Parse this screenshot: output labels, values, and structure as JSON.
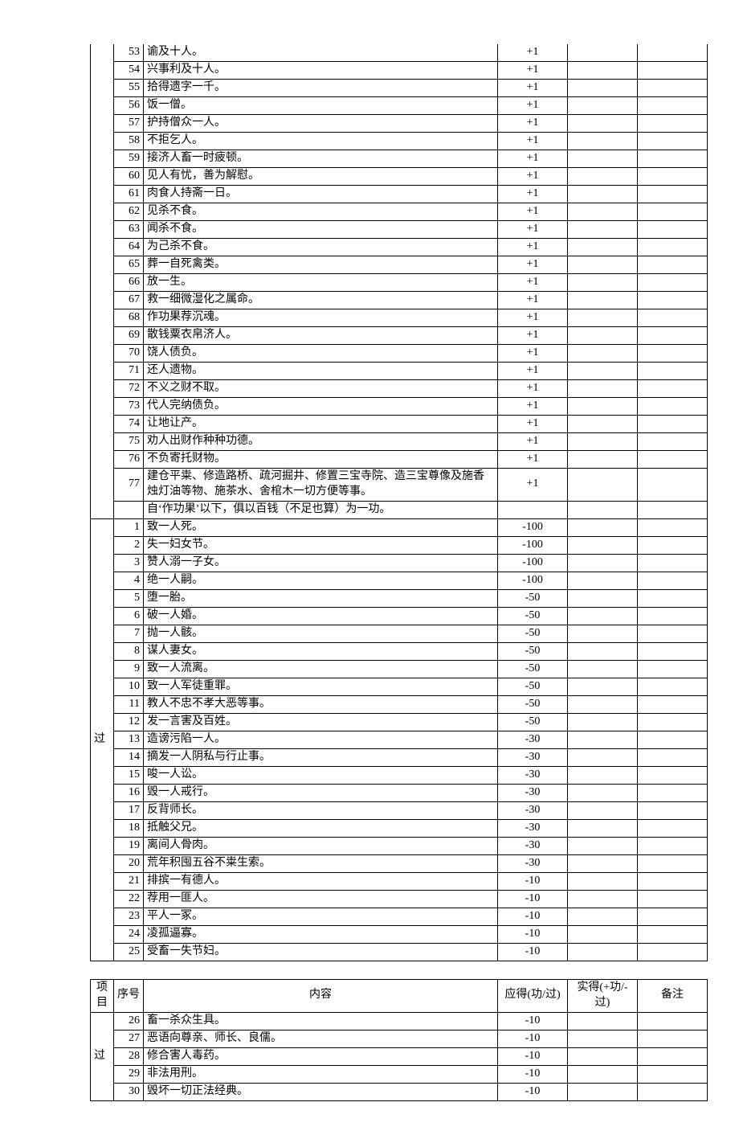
{
  "header": {
    "col_cat": "项目",
    "col_num": "序号",
    "col_text": "内容",
    "col_score": "应得(功/过)",
    "col_got": "实得(+功/-过)",
    "col_note": "备注"
  },
  "cat_gong": "",
  "cat_guo": "过",
  "gong_rows": [
    {
      "n": "53",
      "t": "谕及十人。",
      "s": "+1"
    },
    {
      "n": "54",
      "t": "兴事利及十人。",
      "s": "+1"
    },
    {
      "n": "55",
      "t": "拾得遗字一千。",
      "s": "+1"
    },
    {
      "n": "56",
      "t": "饭一僧。",
      "s": "+1"
    },
    {
      "n": "57",
      "t": "护持僧众一人。",
      "s": "+1"
    },
    {
      "n": "58",
      "t": "不拒乞人。",
      "s": "+1"
    },
    {
      "n": "59",
      "t": "接济人畜一时疲顿。",
      "s": "+1"
    },
    {
      "n": "60",
      "t": "见人有忧，善为解慰。",
      "s": "+1"
    },
    {
      "n": "61",
      "t": "肉食人持斋一日。",
      "s": "+1"
    },
    {
      "n": "62",
      "t": "见杀不食。",
      "s": "+1"
    },
    {
      "n": "63",
      "t": "闻杀不食。",
      "s": "+1"
    },
    {
      "n": "64",
      "t": "为己杀不食。",
      "s": "+1"
    },
    {
      "n": "65",
      "t": "葬一自死禽类。",
      "s": "+1"
    },
    {
      "n": "66",
      "t": "放一生。",
      "s": "+1"
    },
    {
      "n": "67",
      "t": "救一细微湿化之属命。",
      "s": "+1"
    },
    {
      "n": "68",
      "t": "作功果荐沉魂。",
      "s": "+1"
    },
    {
      "n": "69",
      "t": "散钱粟衣帛济人。",
      "s": "+1"
    },
    {
      "n": "70",
      "t": "饶人债负。",
      "s": "+1"
    },
    {
      "n": "71",
      "t": "还人遗物。",
      "s": "+1"
    },
    {
      "n": "72",
      "t": "不义之财不取。",
      "s": "+1"
    },
    {
      "n": "73",
      "t": "代人完纳债负。",
      "s": "+1"
    },
    {
      "n": "74",
      "t": "让地让产。",
      "s": "+1"
    },
    {
      "n": "75",
      "t": "劝人出财作种种功德。",
      "s": "+1"
    },
    {
      "n": "76",
      "t": "不负寄托财物。",
      "s": "+1"
    },
    {
      "n": "77",
      "t": "建仓平粜、修造路桥、疏河掘井、修置三宝寺院、造三宝尊像及施香烛灯油等物、施茶水、舍棺木一切方便等事。",
      "s": "+1"
    }
  ],
  "gong_tail": {
    "t": "自‘作功果’以下，俱以百钱（不足也算）为一功。"
  },
  "guo1_rows": [
    {
      "n": "1",
      "t": "致一人死。",
      "s": "-100"
    },
    {
      "n": "2",
      "t": "失一妇女节。",
      "s": "-100"
    },
    {
      "n": "3",
      "t": "赞人溺一子女。",
      "s": "-100"
    },
    {
      "n": "4",
      "t": "绝一人嗣。",
      "s": "-100"
    },
    {
      "n": "5",
      "t": "堕一胎。",
      "s": "-50"
    },
    {
      "n": "6",
      "t": "破一人婚。",
      "s": "-50"
    },
    {
      "n": "7",
      "t": "抛一人骸。",
      "s": "-50"
    },
    {
      "n": "8",
      "t": "谋人妻女。",
      "s": "-50"
    },
    {
      "n": "9",
      "t": "致一人流离。",
      "s": "-50"
    },
    {
      "n": "10",
      "t": "致一人军徒重罪。",
      "s": "-50"
    },
    {
      "n": "11",
      "t": "教人不忠不孝大恶等事。",
      "s": "-50"
    },
    {
      "n": "12",
      "t": "发一言害及百姓。",
      "s": "-50"
    },
    {
      "n": "13",
      "t": "造谤污陷一人。",
      "s": "-30"
    },
    {
      "n": "14",
      "t": "摘发一人阴私与行止事。",
      "s": "-30"
    },
    {
      "n": "15",
      "t": "唆一人讼。",
      "s": "-30"
    },
    {
      "n": "16",
      "t": "毁一人戒行。",
      "s": "-30"
    },
    {
      "n": "17",
      "t": "反背师长。",
      "s": "-30"
    },
    {
      "n": "18",
      "t": "抵触父兄。",
      "s": "-30"
    },
    {
      "n": "19",
      "t": "离间人骨肉。",
      "s": "-30"
    },
    {
      "n": "20",
      "t": "荒年积囤五谷不粜生索。",
      "s": "-30"
    },
    {
      "n": "21",
      "t": "排摈一有德人。",
      "s": "-10"
    },
    {
      "n": "22",
      "t": "荐用一匪人。",
      "s": "-10"
    },
    {
      "n": "23",
      "t": "平人一冢。",
      "s": "-10"
    },
    {
      "n": "24",
      "t": "凌孤逼寡。",
      "s": "-10"
    },
    {
      "n": "25",
      "t": "受畜一失节妇。",
      "s": "-10"
    }
  ],
  "guo2_rows": [
    {
      "n": "26",
      "t": "畜一杀众生具。",
      "s": "-10"
    },
    {
      "n": "27",
      "t": "恶语向尊亲、师长、良儒。",
      "s": "-10"
    },
    {
      "n": "28",
      "t": "修合害人毒药。",
      "s": "-10"
    },
    {
      "n": "29",
      "t": "非法用刑。",
      "s": "-10"
    },
    {
      "n": "30",
      "t": "毁坏一切正法经典。",
      "s": "-10"
    }
  ]
}
